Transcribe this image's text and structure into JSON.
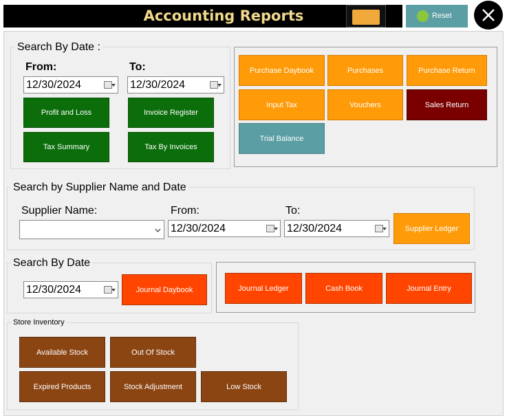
{
  "header": {
    "title": "Accounting Reports",
    "reset_label": "Reset"
  },
  "search_by_date": {
    "group_label": "Search By Date :",
    "from_label": "From:",
    "to_label": "To:",
    "from_value": "12/30/2024",
    "to_value": "12/30/2024",
    "buttons": {
      "profit_loss": "Profit and Loss",
      "invoice_register": "Invoice Register",
      "tax_summary": "Tax Summary",
      "tax_by_invoices": "Tax By Invoices"
    }
  },
  "reports": {
    "purchase_daybook": "Purchase Daybook",
    "purchases": "Purchases",
    "purchase_return": "Purchase Return",
    "input_tax": "Input Tax",
    "vouchers": "Vouchers",
    "sales_return": "Sales Return",
    "trial_balance": "Trial Balance"
  },
  "supplier_search": {
    "group_label": "Search by Supplier Name and Date",
    "supplier_label": "Supplier Name:",
    "supplier_value": "",
    "from_label": "From:",
    "to_label": "To:",
    "from_value": "12/30/2024",
    "to_value": "12/30/2024",
    "ledger_button": "Supplier Ledger"
  },
  "journal_search": {
    "group_label": "Search By Date",
    "date_value": "12/30/2024",
    "daybook_button": "Journal Daybook",
    "ledger_button": "Journal Ledger",
    "cash_book_button": "Cash Book",
    "entry_button": "Journal Entry"
  },
  "store_inventory": {
    "group_label": "Store Inventory",
    "available_stock": "Available Stock",
    "out_of_stock": "Out Of Stock",
    "expired_products": "Expired Products",
    "stock_adjustment": "Stock Adjustment",
    "low_stock": "Low Stock"
  },
  "colors": {
    "green": "#0b6e0b",
    "orange": "#ff9a08",
    "maroon": "#7a0000",
    "teal": "#5b9ea4",
    "red_orange": "#ff4500",
    "brown": "#8b4513",
    "title_gold": "#f2d98c"
  }
}
